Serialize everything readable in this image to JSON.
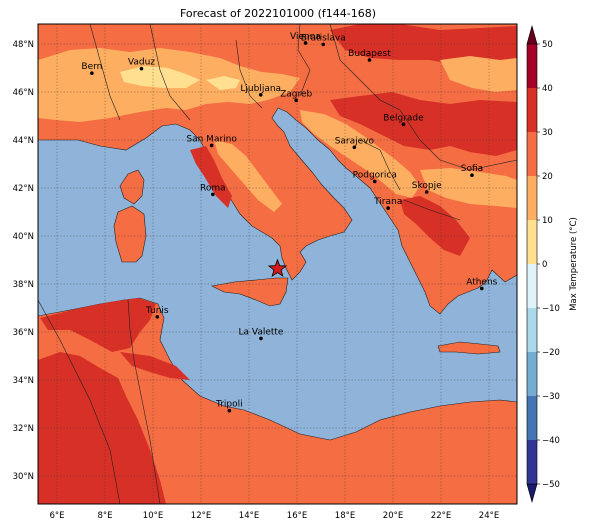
{
  "title": "Forecast of 2022101000 (f144-168)",
  "colorbar": {
    "label": "Max Temperature (°C)",
    "ticks": [
      "50",
      "40",
      "30",
      "20",
      "10",
      "0",
      "−10",
      "−20",
      "−30",
      "−40",
      "−50"
    ],
    "colors": [
      "#a50026",
      "#d73027",
      "#f46d43",
      "#fdae61",
      "#fee090",
      "#e0f3f8",
      "#abd9e9",
      "#74add1",
      "#4575b4",
      "#313695"
    ]
  },
  "axes": {
    "lat_ticks": [
      "48°N",
      "46°N",
      "44°N",
      "42°N",
      "40°N",
      "38°N",
      "36°N",
      "34°N",
      "32°N",
      "30°N"
    ],
    "lon_ticks": [
      "6°E",
      "8°E",
      "10°E",
      "12°E",
      "14°E",
      "16°E",
      "18°E",
      "20°E",
      "22°E",
      "24°E"
    ]
  },
  "legend_colors": {
    "sea": "#8fb3d9",
    "cat_30_40": "#d73027",
    "cat_20_30": "#f46d43",
    "cat_10_20": "#fdae61",
    "cat_0_10": "#fee090"
  },
  "cities": [
    {
      "name": "Bern",
      "lon": 7.45,
      "lat": 46.95
    },
    {
      "name": "Vaduz",
      "lon": 9.52,
      "lat": 47.14
    },
    {
      "name": "Vienna",
      "lon": 16.37,
      "lat": 48.21
    },
    {
      "name": "Bratislava",
      "lon": 17.11,
      "lat": 48.15
    },
    {
      "name": "Budapest",
      "lon": 19.04,
      "lat": 47.5
    },
    {
      "name": "Ljubljana",
      "lon": 14.5,
      "lat": 46.05
    },
    {
      "name": "Zagreb",
      "lon": 15.98,
      "lat": 45.82
    },
    {
      "name": "Belgrade",
      "lon": 20.46,
      "lat": 44.82
    },
    {
      "name": "San Marino",
      "lon": 12.45,
      "lat": 43.94
    },
    {
      "name": "Sarajevo",
      "lon": 18.41,
      "lat": 43.86
    },
    {
      "name": "Sofia",
      "lon": 23.32,
      "lat": 42.7
    },
    {
      "name": "Podgorica",
      "lon": 19.26,
      "lat": 42.44
    },
    {
      "name": "Skopje",
      "lon": 21.43,
      "lat": 42.0
    },
    {
      "name": "Roma",
      "lon": 12.5,
      "lat": 41.9
    },
    {
      "name": "Tirana",
      "lon": 19.82,
      "lat": 41.33
    },
    {
      "name": "Athens",
      "lon": 23.73,
      "lat": 37.98
    },
    {
      "name": "Tunis",
      "lon": 10.18,
      "lat": 36.8
    },
    {
      "name": "La Valette",
      "lon": 14.51,
      "lat": 35.9
    },
    {
      "name": "Tripoli",
      "lon": 13.19,
      "lat": 32.89
    }
  ],
  "marker": {
    "name": "forecast-point",
    "lon": 15.2,
    "lat": 38.8
  }
}
